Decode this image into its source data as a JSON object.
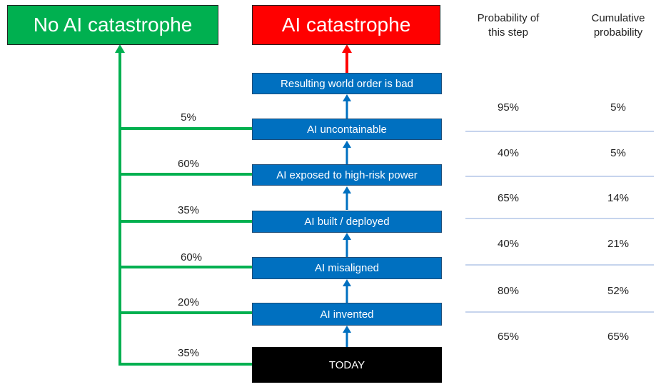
{
  "headers": {
    "no_catastrophe": "No AI catastrophe",
    "catastrophe": "AI catastrophe",
    "prob_step_line1": "Probability of",
    "prob_step_line2": "this step",
    "cumulative_line1": "Cumulative",
    "cumulative_line2": "probability"
  },
  "steps": [
    {
      "label": "Resulting world order is bad"
    },
    {
      "label": "AI uncontainable"
    },
    {
      "label": "AI exposed to high-risk power"
    },
    {
      "label": "AI built / deployed"
    },
    {
      "label": "AI misaligned"
    },
    {
      "label": "AI invented"
    },
    {
      "label": "TODAY"
    }
  ],
  "branch_percents": [
    "5%",
    "60%",
    "35%",
    "60%",
    "20%",
    "35%"
  ],
  "table_rows": [
    {
      "step": "95%",
      "cumulative": "5%"
    },
    {
      "step": "40%",
      "cumulative": "5%"
    },
    {
      "step": "65%",
      "cumulative": "14%"
    },
    {
      "step": "40%",
      "cumulative": "21%"
    },
    {
      "step": "80%",
      "cumulative": "52%"
    },
    {
      "step": "65%",
      "cumulative": "65%"
    }
  ],
  "colors": {
    "green": "#00b050",
    "red": "#ff0000",
    "blue": "#0070c0",
    "black": "#000000",
    "divider": "#8ea9db"
  }
}
